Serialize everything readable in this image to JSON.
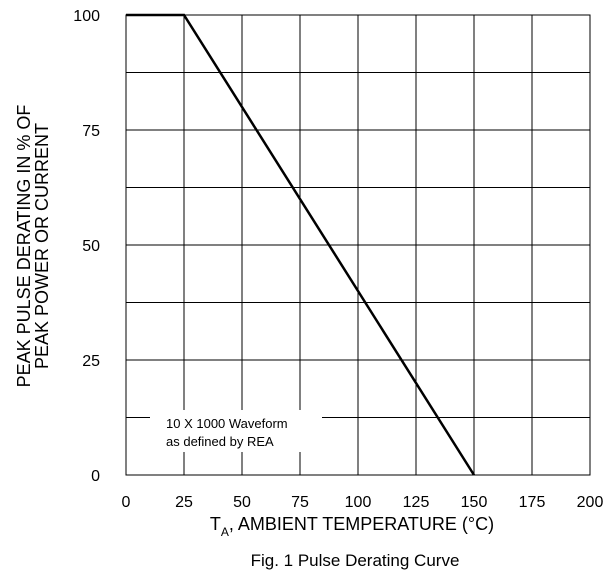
{
  "chart_data": {
    "type": "line",
    "xlabel_main": "T",
    "xlabel_sub": "A",
    "xlabel_rest": ", AMBIENT TEMPERATURE (°C)",
    "ylabel_line1": "PEAK PULSE DERATING IN % OF",
    "ylabel_line2": "PEAK POWER OR CURRENT",
    "caption": "Fig. 1 Pulse Derating Curve",
    "xlim": [
      0,
      200
    ],
    "ylim": [
      0,
      100
    ],
    "xticks": [
      0,
      25,
      50,
      75,
      100,
      125,
      150,
      175,
      200
    ],
    "yticks": [
      0,
      25,
      50,
      75,
      100
    ],
    "grid": true,
    "annotation_line1": "10 X 1000 Waveform",
    "annotation_line2": "as defined by REA",
    "series": [
      {
        "x": [
          0,
          25,
          150
        ],
        "y": [
          100,
          100,
          0
        ]
      }
    ]
  }
}
